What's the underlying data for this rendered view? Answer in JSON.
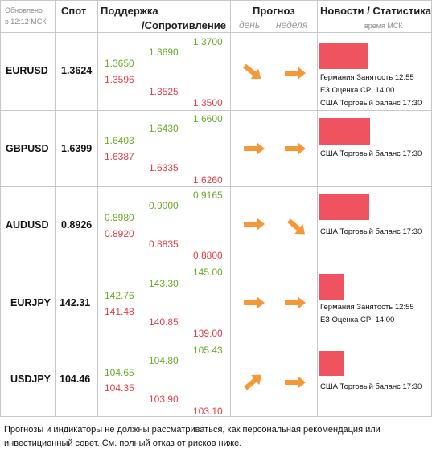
{
  "header": {
    "updated_label": "Обновлено",
    "updated_time": "в 12:12 МСК",
    "spot": "Спот",
    "support": "Поддержка",
    "resistance": "/Сопротивление",
    "forecast": "Прогноз",
    "day": "день",
    "week": "неделя",
    "news": "Новости / Статистика",
    "time_note": "время МСК"
  },
  "colors": {
    "green": "#6aaa2a",
    "red": "#e0404a",
    "bar": "#ef535f",
    "arrow": "#f5983a"
  },
  "rows": [
    {
      "pair": "EURUSD",
      "spot": "1.3624",
      "s1_green": "1.3650",
      "s1_red": "1.3596",
      "s2_green": "1.3690",
      "s2_red": "1.3525",
      "s3_green": "1.3700",
      "s3_red": "1.3500",
      "day_icon": "arrow-down-right-icon",
      "week_icon": "arrow-right-icon",
      "news": [
        "Германия Занятость 12:55",
        "ЕЗ Оценка CPI 14:00",
        "США Торговый баланс 17:30"
      ]
    },
    {
      "pair": "GBPUSD",
      "spot": "1.6399",
      "s1_green": "1.6403",
      "s1_red": "1.6387",
      "s2_green": "1.6430",
      "s2_red": "1.6335",
      "s3_green": "1.6600",
      "s3_red": "1.6260",
      "day_icon": "arrow-right-icon",
      "week_icon": "arrow-right-icon",
      "news": [
        "США Торговый баланс 17:30"
      ]
    },
    {
      "pair": "AUDUSD",
      "spot": "0.8926",
      "s1_green": "0.8980",
      "s1_red": "0.8920",
      "s2_green": "0.9000",
      "s2_red": "0.8835",
      "s3_green": "0.9165",
      "s3_red": "0.8800",
      "day_icon": "arrow-right-icon",
      "week_icon": "arrow-down-right-icon",
      "news": [
        "США Торговый баланс 17:30"
      ]
    },
    {
      "pair": "EURJPY",
      "spot": "142.31",
      "s1_green": "142.76",
      "s1_red": "141.48",
      "s2_green": "143.30",
      "s2_red": "140.85",
      "s3_green": "145.00",
      "s3_red": "139.00",
      "day_icon": "arrow-right-icon",
      "week_icon": "arrow-right-icon",
      "news": [
        "Германия Занятость 12:55",
        "ЕЗ Оценка CPI 14:00"
      ]
    },
    {
      "pair": "USDJPY",
      "spot": "104.46",
      "s1_green": "104.65",
      "s1_red": "104.35",
      "s2_green": "104.80",
      "s2_red": "103.90",
      "s3_green": "105.43",
      "s3_red": "103.10",
      "day_icon": "arrow-up-right-icon",
      "week_icon": "arrow-right-icon",
      "news": [
        "США Торговый баланс 17:30"
      ]
    }
  ],
  "footer": "Прогнозы и индикаторы не должны рассматриваться, как персональная рекомендация или инвестиционный совет. См. полный отказ от рисков ниже."
}
